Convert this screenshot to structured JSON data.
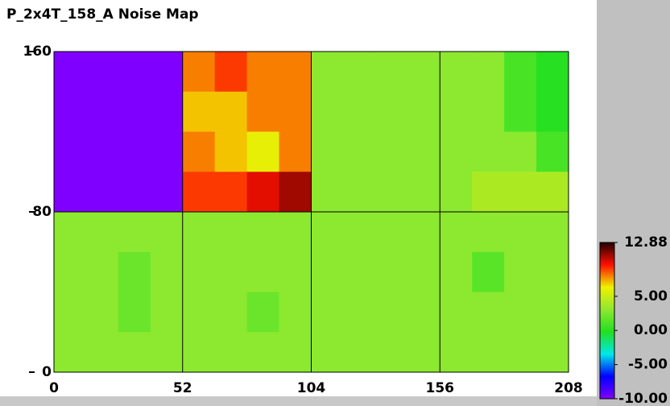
{
  "chart_data": {
    "type": "heatmap",
    "title": "P_2x4T_158_A Noise Map",
    "xlim": [
      0,
      208
    ],
    "xticks": [
      0,
      52,
      104,
      156,
      208
    ],
    "ylim": [
      0,
      160
    ],
    "yticks": [
      0,
      80,
      160
    ],
    "grid": true,
    "z": [
      [
        -10,
        -10,
        -10,
        -10,
        8,
        9,
        8,
        8,
        3,
        3,
        3,
        3,
        3,
        3,
        1,
        0
      ],
      [
        -10,
        -10,
        -10,
        -10,
        7,
        7,
        8,
        8,
        3,
        3,
        3,
        3,
        3,
        3,
        1,
        0
      ],
      [
        -10,
        -10,
        -10,
        -10,
        8,
        7,
        6,
        8,
        3,
        3,
        3,
        3,
        3,
        3,
        3,
        1
      ],
      [
        -10,
        -10,
        -10,
        -10,
        9,
        9,
        10,
        11,
        3,
        3,
        3,
        3,
        3,
        4,
        4,
        4
      ],
      [
        3,
        3,
        3,
        3,
        3,
        3,
        3,
        3,
        3,
        3,
        3,
        3,
        3,
        3,
        3,
        3
      ],
      [
        3,
        3,
        2,
        3,
        3,
        3,
        3,
        3,
        3,
        3,
        3,
        3,
        3,
        1.5,
        3,
        3
      ],
      [
        3,
        3,
        2,
        3,
        3,
        3,
        2,
        3,
        3,
        3,
        3,
        3,
        3,
        3,
        3,
        3
      ],
      [
        3,
        3,
        3,
        3,
        3,
        3,
        3,
        3,
        3,
        3,
        3,
        3,
        3,
        3,
        3,
        3
      ]
    ],
    "zlim": [
      -10,
      12.88
    ],
    "zticks": [
      {
        "value": -10,
        "label": "-10.00"
      },
      {
        "value": -5,
        "label": "-5.00"
      },
      {
        "value": 0,
        "label": "0.00"
      },
      {
        "value": 5,
        "label": "5.00"
      },
      12.88
    ],
    "colorscale": [
      "#8000ff",
      "#0000ff",
      "#00e8e8",
      "#20e020",
      "#90e830",
      "#f0f000",
      "#ff1000",
      "#200000"
    ]
  }
}
